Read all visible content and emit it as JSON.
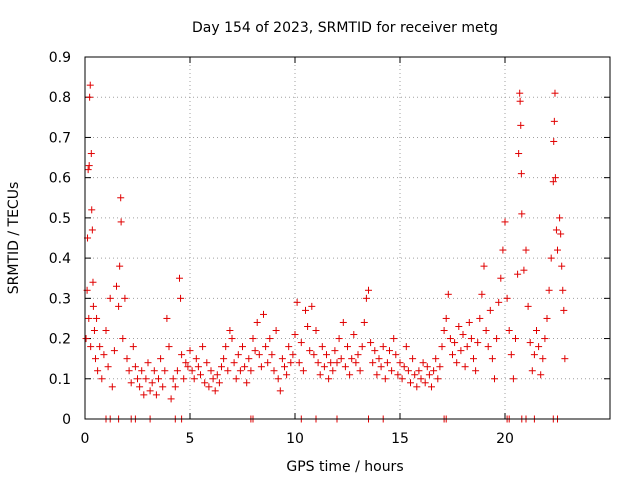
{
  "chart_data": {
    "type": "scatter",
    "title": "Day 154 of 2023, SRMTID for receiver metg",
    "xlabel": "GPS time / hours",
    "ylabel": "SRMTID / TECUs",
    "xlim": [
      0,
      25
    ],
    "ylim": [
      0,
      0.9
    ],
    "x_ticks": [
      0,
      5,
      10,
      15,
      20
    ],
    "x_tick_labels": [
      "0",
      "5",
      "10",
      "15",
      "20"
    ],
    "y_ticks": [
      0,
      0.1,
      0.2,
      0.3,
      0.4,
      0.5,
      0.6,
      0.7,
      0.8,
      0.9
    ],
    "y_tick_labels": [
      "0",
      "0.1",
      "0.2",
      "0.3",
      "0.4",
      "0.5",
      "0.6",
      "0.7",
      "0.8",
      "0.9"
    ],
    "grid": true,
    "marker": "+",
    "color": "#e00000",
    "series": [
      {
        "name": "SRMTID",
        "points": [
          [
            0.05,
            0.2
          ],
          [
            0.1,
            0.32
          ],
          [
            0.12,
            0.45
          ],
          [
            0.15,
            0.62
          ],
          [
            0.18,
            0.25
          ],
          [
            0.2,
            0.63
          ],
          [
            0.22,
            0.8
          ],
          [
            0.25,
            0.83
          ],
          [
            0.27,
            0.18
          ],
          [
            0.3,
            0.66
          ],
          [
            0.32,
            0.52
          ],
          [
            0.35,
            0.47
          ],
          [
            0.38,
            0.34
          ],
          [
            0.4,
            0.28
          ],
          [
            0.45,
            0.22
          ],
          [
            0.5,
            0.15
          ],
          [
            0.55,
            0.25
          ],
          [
            0.6,
            0.12
          ],
          [
            0.7,
            0.18
          ],
          [
            0.8,
            0.1
          ],
          [
            0.9,
            0.16
          ],
          [
            1.0,
            0.22
          ],
          [
            1.1,
            0.13
          ],
          [
            1.2,
            0.3
          ],
          [
            1.3,
            0.08
          ],
          [
            1.4,
            0.17
          ],
          [
            1.5,
            0.33
          ],
          [
            1.6,
            0.28
          ],
          [
            1.65,
            0.38
          ],
          [
            1.7,
            0.55
          ],
          [
            1.72,
            0.49
          ],
          [
            1.8,
            0.2
          ],
          [
            1.9,
            0.3
          ],
          [
            2.0,
            0.15
          ],
          [
            2.1,
            0.12
          ],
          [
            2.2,
            0.09
          ],
          [
            2.3,
            0.18
          ],
          [
            2.4,
            0.13
          ],
          [
            2.5,
            0.1
          ],
          [
            2.6,
            0.08
          ],
          [
            2.7,
            0.12
          ],
          [
            2.8,
            0.06
          ],
          [
            2.9,
            0.1
          ],
          [
            3.0,
            0.14
          ],
          [
            3.1,
            0.07
          ],
          [
            3.2,
            0.09
          ],
          [
            3.3,
            0.12
          ],
          [
            3.4,
            0.06
          ],
          [
            3.5,
            0.1
          ],
          [
            3.6,
            0.15
          ],
          [
            3.7,
            0.08
          ],
          [
            3.8,
            0.12
          ],
          [
            3.9,
            0.25
          ],
          [
            4.0,
            0.18
          ],
          [
            4.1,
            0.05
          ],
          [
            4.2,
            0.1
          ],
          [
            4.3,
            0.08
          ],
          [
            4.4,
            0.12
          ],
          [
            4.5,
            0.35
          ],
          [
            4.55,
            0.3
          ],
          [
            4.6,
            0.16
          ],
          [
            4.7,
            0.1
          ],
          [
            4.8,
            0.14
          ],
          [
            4.9,
            0.13
          ],
          [
            5.0,
            0.17
          ],
          [
            5.1,
            0.12
          ],
          [
            5.2,
            0.1
          ],
          [
            5.3,
            0.15
          ],
          [
            5.4,
            0.13
          ],
          [
            5.5,
            0.11
          ],
          [
            5.6,
            0.18
          ],
          [
            5.7,
            0.09
          ],
          [
            5.8,
            0.14
          ],
          [
            5.9,
            0.08
          ],
          [
            6.0,
            0.12
          ],
          [
            6.1,
            0.1
          ],
          [
            6.2,
            0.07
          ],
          [
            6.3,
            0.11
          ],
          [
            6.4,
            0.09
          ],
          [
            6.5,
            0.13
          ],
          [
            6.6,
            0.15
          ],
          [
            6.7,
            0.18
          ],
          [
            6.8,
            0.12
          ],
          [
            6.9,
            0.22
          ],
          [
            7.0,
            0.2
          ],
          [
            7.1,
            0.14
          ],
          [
            7.2,
            0.1
          ],
          [
            7.3,
            0.16
          ],
          [
            7.4,
            0.12
          ],
          [
            7.5,
            0.18
          ],
          [
            7.6,
            0.13
          ],
          [
            7.7,
            0.09
          ],
          [
            7.8,
            0.15
          ],
          [
            7.9,
            0.12
          ],
          [
            8.0,
            0.2
          ],
          [
            8.1,
            0.17
          ],
          [
            8.2,
            0.24
          ],
          [
            8.3,
            0.16
          ],
          [
            8.4,
            0.13
          ],
          [
            8.5,
            0.26
          ],
          [
            8.6,
            0.18
          ],
          [
            8.7,
            0.14
          ],
          [
            8.8,
            0.2
          ],
          [
            8.9,
            0.16
          ],
          [
            9.0,
            0.12
          ],
          [
            9.1,
            0.22
          ],
          [
            9.2,
            0.1
          ],
          [
            9.3,
            0.07
          ],
          [
            9.4,
            0.15
          ],
          [
            9.5,
            0.13
          ],
          [
            9.6,
            0.11
          ],
          [
            9.7,
            0.18
          ],
          [
            9.8,
            0.14
          ],
          [
            9.9,
            0.16
          ],
          [
            10.0,
            0.21
          ],
          [
            10.1,
            0.29
          ],
          [
            10.2,
            0.14
          ],
          [
            10.3,
            0.19
          ],
          [
            10.4,
            0.12
          ],
          [
            10.5,
            0.27
          ],
          [
            10.6,
            0.23
          ],
          [
            10.7,
            0.17
          ],
          [
            10.8,
            0.28
          ],
          [
            10.9,
            0.16
          ],
          [
            11.0,
            0.22
          ],
          [
            11.1,
            0.14
          ],
          [
            11.2,
            0.11
          ],
          [
            11.3,
            0.18
          ],
          [
            11.4,
            0.13
          ],
          [
            11.5,
            0.16
          ],
          [
            11.6,
            0.1
          ],
          [
            11.7,
            0.14
          ],
          [
            11.8,
            0.12
          ],
          [
            11.9,
            0.17
          ],
          [
            12.0,
            0.14
          ],
          [
            12.1,
            0.2
          ],
          [
            12.2,
            0.15
          ],
          [
            12.3,
            0.24
          ],
          [
            12.4,
            0.13
          ],
          [
            12.5,
            0.18
          ],
          [
            12.6,
            0.11
          ],
          [
            12.7,
            0.15
          ],
          [
            12.8,
            0.21
          ],
          [
            12.9,
            0.14
          ],
          [
            13.0,
            0.16
          ],
          [
            13.1,
            0.12
          ],
          [
            13.2,
            0.18
          ],
          [
            13.3,
            0.24
          ],
          [
            13.4,
            0.3
          ],
          [
            13.5,
            0.32
          ],
          [
            13.6,
            0.19
          ],
          [
            13.7,
            0.14
          ],
          [
            13.8,
            0.17
          ],
          [
            13.9,
            0.11
          ],
          [
            14.0,
            0.15
          ],
          [
            14.1,
            0.13
          ],
          [
            14.2,
            0.18
          ],
          [
            14.3,
            0.1
          ],
          [
            14.4,
            0.14
          ],
          [
            14.5,
            0.17
          ],
          [
            14.6,
            0.12
          ],
          [
            14.7,
            0.2
          ],
          [
            14.8,
            0.16
          ],
          [
            14.9,
            0.11
          ],
          [
            15.0,
            0.14
          ],
          [
            15.1,
            0.1
          ],
          [
            15.2,
            0.13
          ],
          [
            15.3,
            0.18
          ],
          [
            15.4,
            0.12
          ],
          [
            15.5,
            0.09
          ],
          [
            15.6,
            0.15
          ],
          [
            15.7,
            0.11
          ],
          [
            15.8,
            0.08
          ],
          [
            15.9,
            0.12
          ],
          [
            16.0,
            0.1
          ],
          [
            16.1,
            0.14
          ],
          [
            16.2,
            0.09
          ],
          [
            16.3,
            0.13
          ],
          [
            16.4,
            0.11
          ],
          [
            16.5,
            0.08
          ],
          [
            16.6,
            0.12
          ],
          [
            16.7,
            0.15
          ],
          [
            16.8,
            0.1
          ],
          [
            16.9,
            0.13
          ],
          [
            17.0,
            0.18
          ],
          [
            17.1,
            0.22
          ],
          [
            17.2,
            0.25
          ],
          [
            17.3,
            0.31
          ],
          [
            17.4,
            0.2
          ],
          [
            17.5,
            0.16
          ],
          [
            17.6,
            0.19
          ],
          [
            17.7,
            0.14
          ],
          [
            17.8,
            0.23
          ],
          [
            17.9,
            0.17
          ],
          [
            18.0,
            0.21
          ],
          [
            18.1,
            0.13
          ],
          [
            18.2,
            0.18
          ],
          [
            18.3,
            0.24
          ],
          [
            18.4,
            0.2
          ],
          [
            18.5,
            0.15
          ],
          [
            18.6,
            0.12
          ],
          [
            18.7,
            0.19
          ],
          [
            18.8,
            0.25
          ],
          [
            18.9,
            0.31
          ],
          [
            19.0,
            0.38
          ],
          [
            19.1,
            0.22
          ],
          [
            19.2,
            0.18
          ],
          [
            19.3,
            0.27
          ],
          [
            19.4,
            0.15
          ],
          [
            19.5,
            0.1
          ],
          [
            19.6,
            0.2
          ],
          [
            19.7,
            0.29
          ],
          [
            19.8,
            0.35
          ],
          [
            19.9,
            0.42
          ],
          [
            20.0,
            0.49
          ],
          [
            20.1,
            0.3
          ],
          [
            20.2,
            0.22
          ],
          [
            20.3,
            0.16
          ],
          [
            20.4,
            0.1
          ],
          [
            20.5,
            0.2
          ],
          [
            20.6,
            0.36
          ],
          [
            20.65,
            0.66
          ],
          [
            20.7,
            0.81
          ],
          [
            20.72,
            0.79
          ],
          [
            20.75,
            0.73
          ],
          [
            20.78,
            0.61
          ],
          [
            20.8,
            0.51
          ],
          [
            20.9,
            0.37
          ],
          [
            21.0,
            0.42
          ],
          [
            21.1,
            0.28
          ],
          [
            21.2,
            0.19
          ],
          [
            21.3,
            0.12
          ],
          [
            21.4,
            0.16
          ],
          [
            21.5,
            0.22
          ],
          [
            21.6,
            0.18
          ],
          [
            21.7,
            0.11
          ],
          [
            21.8,
            0.15
          ],
          [
            21.9,
            0.2
          ],
          [
            22.0,
            0.25
          ],
          [
            22.1,
            0.32
          ],
          [
            22.2,
            0.4
          ],
          [
            22.3,
            0.59
          ],
          [
            22.32,
            0.69
          ],
          [
            22.35,
            0.74
          ],
          [
            22.38,
            0.81
          ],
          [
            22.4,
            0.6
          ],
          [
            22.45,
            0.47
          ],
          [
            22.5,
            0.42
          ],
          [
            22.6,
            0.5
          ],
          [
            22.65,
            0.46
          ],
          [
            22.7,
            0.38
          ],
          [
            22.75,
            0.32
          ],
          [
            22.8,
            0.27
          ],
          [
            22.85,
            0.15
          ]
        ],
        "zeros_at_x": [
          1.0,
          1.2,
          1.6,
          2.2,
          2.4,
          3.1,
          4.3,
          4.6,
          7.9,
          8.0,
          10.3,
          11.0,
          12.0,
          13.5,
          14.2,
          17.1,
          17.2,
          20.1,
          20.2,
          20.8,
          21.0,
          21.4,
          22.3,
          22.5
        ]
      }
    ]
  }
}
